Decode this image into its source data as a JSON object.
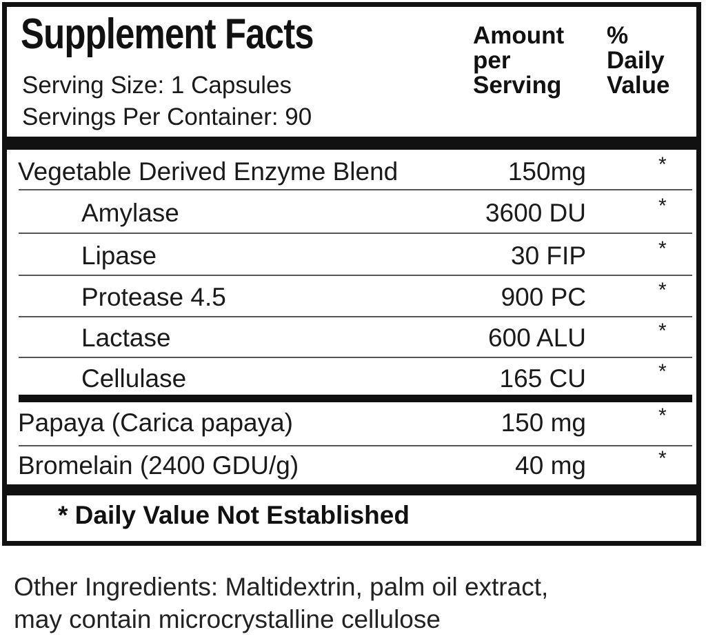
{
  "header": {
    "title": "Supplement Facts",
    "serving_size": "Serving Size: 1 Capsules",
    "servings_per_container": "Servings Per Container: 90",
    "amount_header": [
      "Amount",
      "per",
      "Serving"
    ],
    "dv_header": [
      "%",
      "Daily",
      "Value"
    ]
  },
  "rows": [
    {
      "name": "Vegetable Derived Enzyme Blend",
      "amount": "150mg",
      "dv": "*",
      "indent": false
    },
    {
      "name": "Amylase",
      "amount": "3600 DU",
      "dv": "*",
      "indent": true
    },
    {
      "name": "Lipase",
      "amount": "30 FIP",
      "dv": "*",
      "indent": true
    },
    {
      "name": "Protease 4.5",
      "amount": "900 PC",
      "dv": "*",
      "indent": true
    },
    {
      "name": "Lactase",
      "amount": "600 ALU",
      "dv": "*",
      "indent": true
    },
    {
      "name": "Cellulase",
      "amount": "165 CU",
      "dv": "*",
      "indent": true
    },
    {
      "name": "Papaya (Carica papaya)",
      "amount": "150 mg",
      "dv": "*",
      "indent": false
    },
    {
      "name": "Bromelain (2400 GDU/g)",
      "amount": "40 mg",
      "dv": "*",
      "indent": false
    }
  ],
  "footnote": "* Daily Value Not Established",
  "other_ingredients": [
    "Other Ingredients: Maltidextrin, palm oil extract,",
    "may contain microcrystalline cellulose"
  ]
}
